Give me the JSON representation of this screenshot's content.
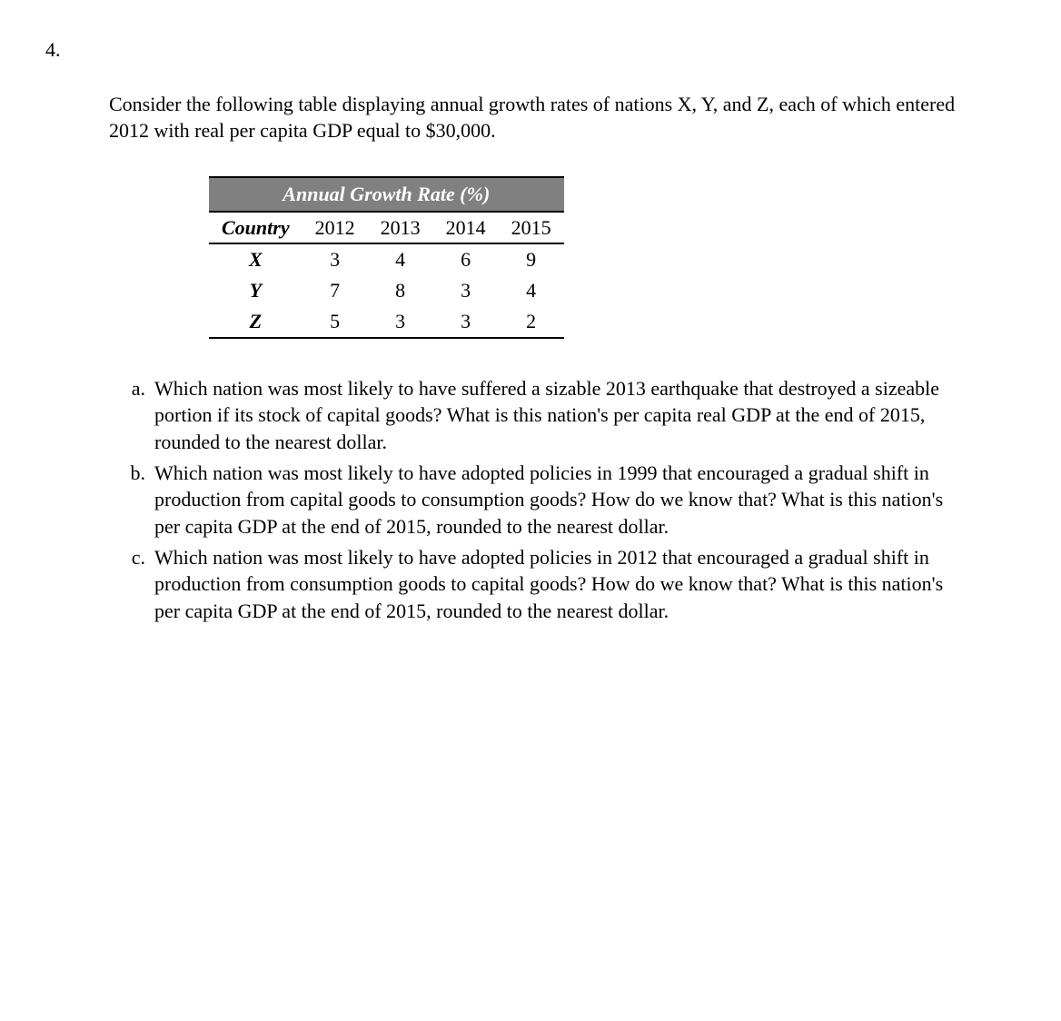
{
  "problem_number": "4.",
  "intro": "Consider the following table displaying annual growth rates of nations X, Y, and Z, each of which entered 2012 with real per capita GDP equal to $30,000.",
  "table": {
    "title": "Annual Growth Rate (%)",
    "title_bg": "#808080",
    "title_color": "#ffffff",
    "border_color": "#000000",
    "columns": [
      "Country",
      "2012",
      "2013",
      "2014",
      "2015"
    ],
    "rows": [
      [
        "X",
        "3",
        "4",
        "6",
        "9"
      ],
      [
        "Y",
        "7",
        "8",
        "3",
        "4"
      ],
      [
        "Z",
        "5",
        "3",
        "3",
        "2"
      ]
    ],
    "font_family": "Times New Roman",
    "header_italic": true,
    "header_bold": true,
    "row_label_bold": true,
    "row_label_italic": true,
    "cell_fontsize": 22
  },
  "questions": {
    "a": {
      "marker": "a.",
      "text": "Which nation was most likely to have suffered a sizable 2013 earthquake that destroyed a sizeable portion if its stock of capital goods?  What is this nation's per capita real GDP at the end of 2015, rounded to the nearest dollar."
    },
    "b": {
      "marker": "b.",
      "text": "Which nation was most likely to have adopted policies in 1999 that encouraged a gradual shift in production from capital goods to consumption goods?  How do we know that?   What is this nation's per capita GDP at the end of 2015, rounded to the nearest dollar."
    },
    "c": {
      "marker": "c.",
      "text": "Which nation was most likely to have adopted policies in 2012 that encouraged a gradual shift in production from consumption goods to capital goods?  How do we know that?   What is this nation's per capita GDP at the end of 2015, rounded to the nearest dollar."
    }
  },
  "page": {
    "background_color": "#ffffff",
    "text_color": "#000000",
    "body_fontsize": 22
  }
}
